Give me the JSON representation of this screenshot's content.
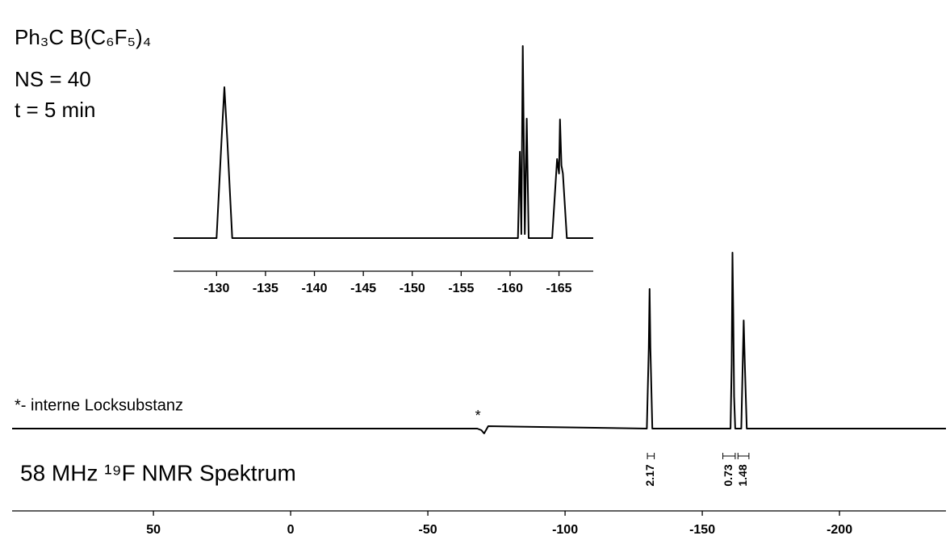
{
  "chart_data": [
    {
      "type": "line",
      "title": "58 MHz ¹⁹F NMR Spektrum",
      "note": "*- interne Locksubstanz",
      "annotations": [
        {
          "text": "*",
          "x": -70
        }
      ],
      "integrals": [
        {
          "label": "2.17",
          "from": -130,
          "to": -132.5
        },
        {
          "label": "0.73",
          "from": -157.5,
          "to": -162
        },
        {
          "label": "1.48",
          "from": -163,
          "to": -167
        }
      ],
      "color": "#000000",
      "x": [
        101.5,
        -68,
        -69.5,
        -70.5,
        -72,
        -129.8,
        -130.5,
        -130.8,
        -131.1,
        -131.8,
        -160.3,
        -160.7,
        -161.0,
        -161.3,
        -161.6,
        -162,
        -164.2,
        -164.8,
        -165.1,
        -165.5,
        -166.2,
        -238.8
      ],
      "values": [
        0,
        0,
        -2,
        -6,
        3,
        0,
        100,
        173,
        100,
        0,
        0,
        80,
        218,
        140,
        40,
        0,
        0,
        90,
        134,
        80,
        0,
        0
      ],
      "xlim": [
        101.5,
        -238.8
      ],
      "xticks": [
        50,
        0,
        -50,
        -100,
        -150,
        -200
      ],
      "ylim": [
        -30,
        230
      ]
    },
    {
      "type": "line",
      "title": "Ph₃C B(C₆F₅)₄",
      "notes": [
        "NS = 40",
        "t = 5 min"
      ],
      "color": "#000000",
      "x": [
        -125.6,
        -130.0,
        -130.5,
        -130.8,
        -131.1,
        -131.6,
        -160.8,
        -161.0,
        -161.15,
        -161.3,
        -161.5,
        -161.7,
        -161.9,
        -164.3,
        -164.8,
        -165.0,
        -165.1,
        -165.25,
        -165.4,
        -165.8,
        -168.5
      ],
      "values": [
        0,
        0,
        120,
        187,
        120,
        0,
        0,
        107,
        5,
        238,
        5,
        148,
        0,
        0,
        98,
        80,
        147,
        90,
        80,
        0,
        0
      ],
      "xlim": [
        -125.6,
        -168.5
      ],
      "xticks": [
        -130,
        -135,
        -140,
        -145,
        -150,
        -155,
        -160,
        -165
      ],
      "ylim": [
        -10,
        250
      ]
    }
  ]
}
